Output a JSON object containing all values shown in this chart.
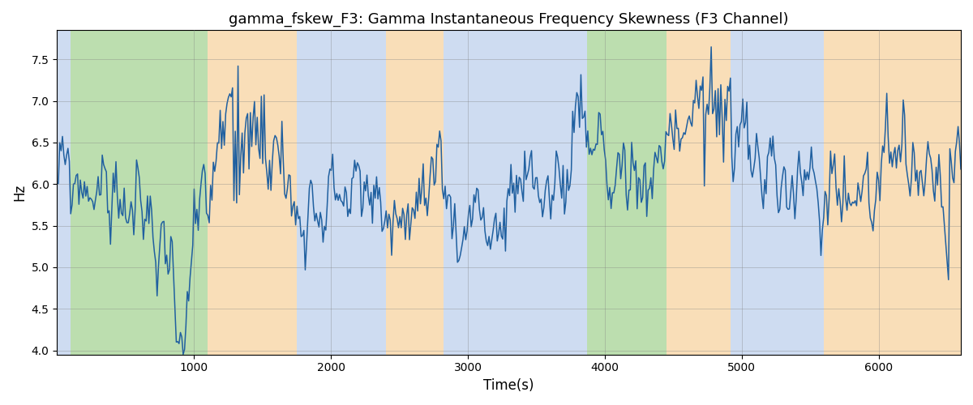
{
  "title": "gamma_fskew_F3: Gamma Instantaneous Frequency Skewness (F3 Channel)",
  "xlabel": "Time(s)",
  "ylabel": "Hz",
  "xlim": [
    0,
    6600
  ],
  "ylim": [
    3.95,
    7.85
  ],
  "yticks": [
    4.0,
    4.5,
    5.0,
    5.5,
    6.0,
    6.5,
    7.0,
    7.5
  ],
  "xticks": [
    1000,
    2000,
    3000,
    4000,
    5000,
    6000
  ],
  "line_color": "#2060a0",
  "line_width": 1.1,
  "bg_bands": [
    {
      "xstart": 0,
      "xend": 100,
      "color": "#aec6e8",
      "alpha": 0.6
    },
    {
      "xstart": 100,
      "xend": 1100,
      "color": "#90c97a",
      "alpha": 0.6
    },
    {
      "xstart": 1100,
      "xend": 1750,
      "color": "#f5c98a",
      "alpha": 0.6
    },
    {
      "xstart": 1750,
      "xend": 2400,
      "color": "#aec6e8",
      "alpha": 0.6
    },
    {
      "xstart": 2400,
      "xend": 2820,
      "color": "#f5c98a",
      "alpha": 0.6
    },
    {
      "xstart": 2820,
      "xend": 3750,
      "color": "#aec6e8",
      "alpha": 0.6
    },
    {
      "xstart": 3750,
      "xend": 3870,
      "color": "#aec6e8",
      "alpha": 0.6
    },
    {
      "xstart": 3870,
      "xend": 4450,
      "color": "#90c97a",
      "alpha": 0.6
    },
    {
      "xstart": 4450,
      "xend": 4920,
      "color": "#f5c98a",
      "alpha": 0.6
    },
    {
      "xstart": 4920,
      "xend": 5470,
      "color": "#aec6e8",
      "alpha": 0.6
    },
    {
      "xstart": 5470,
      "xend": 5600,
      "color": "#aec6e8",
      "alpha": 0.6
    },
    {
      "xstart": 5600,
      "xend": 6600,
      "color": "#f5c98a",
      "alpha": 0.6
    }
  ],
  "seed": 99
}
